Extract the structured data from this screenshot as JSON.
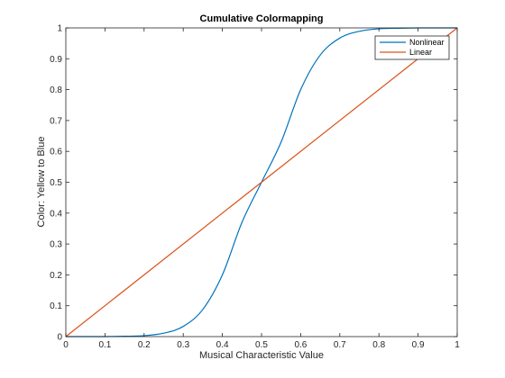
{
  "chart_data": {
    "type": "line",
    "title": "Cumulative Colormapping",
    "xlabel": "Musical Characteristic Value",
    "ylabel": "Color: Yellow to Blue",
    "xlim": [
      0,
      1
    ],
    "ylim": [
      0,
      1
    ],
    "x_ticks": [
      "0",
      "0.1",
      "0.2",
      "0.3",
      "0.4",
      "0.5",
      "0.6",
      "0.7",
      "0.8",
      "0.9",
      "1"
    ],
    "y_ticks": [
      "0",
      "0.1",
      "0.2",
      "0.3",
      "0.4",
      "0.5",
      "0.6",
      "0.7",
      "0.8",
      "0.9",
      "1"
    ],
    "grid": false,
    "legend_position": "top-right",
    "series": [
      {
        "name": "Nonlinear",
        "color": "#0072BD",
        "x": [
          0,
          0.05,
          0.1,
          0.15,
          0.2,
          0.25,
          0.3,
          0.35,
          0.4,
          0.45,
          0.5,
          0.55,
          0.6,
          0.65,
          0.7,
          0.75,
          0.8,
          0.85,
          0.9,
          0.95,
          1
        ],
        "y": [
          0,
          0,
          0,
          0.001,
          0.003,
          0.011,
          0.033,
          0.088,
          0.2,
          0.37,
          0.5,
          0.63,
          0.8,
          0.912,
          0.967,
          0.989,
          0.997,
          0.999,
          1,
          1,
          1
        ]
      },
      {
        "name": "Linear",
        "color": "#D95319",
        "x": [
          0,
          1
        ],
        "y": [
          0,
          1
        ]
      }
    ]
  }
}
